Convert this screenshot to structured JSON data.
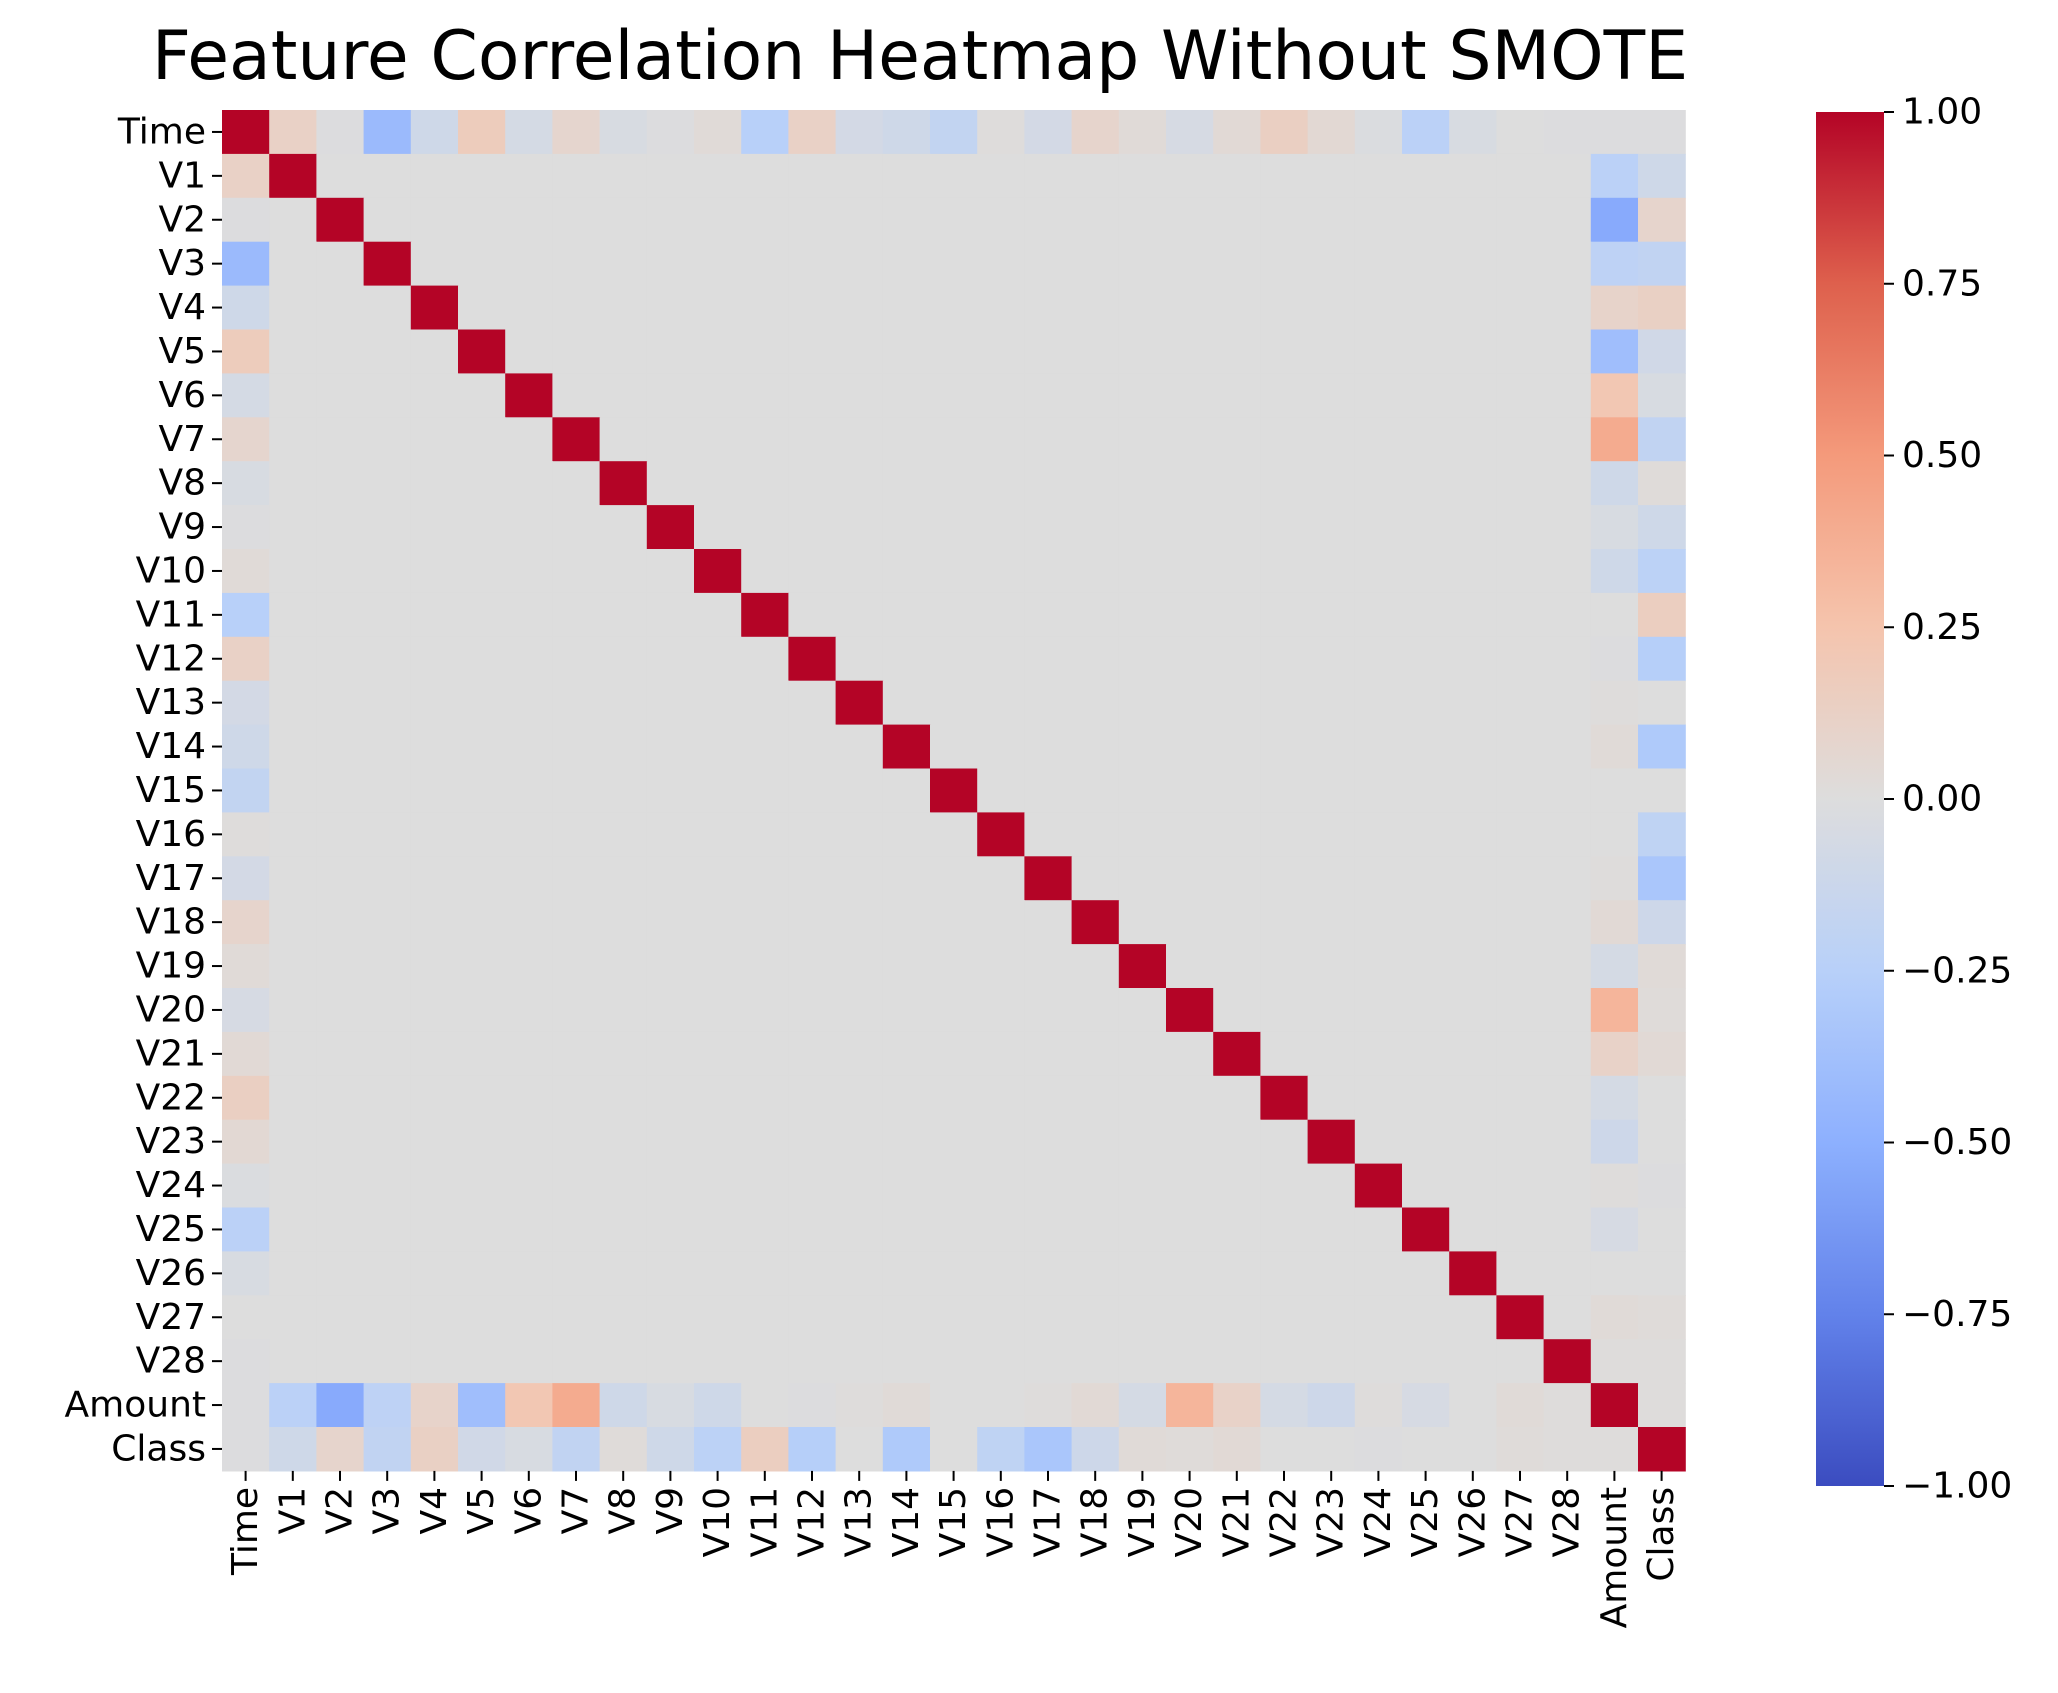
{
  "chart_data": {
    "type": "heatmap",
    "title": "Feature Correlation Heatmap Without SMOTE",
    "xlabel": "",
    "ylabel": "",
    "labels": [
      "Time",
      "V1",
      "V2",
      "V3",
      "V4",
      "V5",
      "V6",
      "V7",
      "V8",
      "V9",
      "V10",
      "V11",
      "V12",
      "V13",
      "V14",
      "V15",
      "V16",
      "V17",
      "V18",
      "V19",
      "V20",
      "V21",
      "V22",
      "V23",
      "V24",
      "V25",
      "V26",
      "V27",
      "V28",
      "Amount",
      "Class"
    ],
    "colormap": "coolwarm",
    "vmin": -1.0,
    "vmax": 1.0,
    "colorbar_ticks": [
      1.0,
      0.75,
      0.5,
      0.25,
      0.0,
      -0.25,
      -0.5,
      -0.75,
      -1.0
    ],
    "colorbar_tick_labels": [
      "1.00",
      "0.75",
      "0.50",
      "0.25",
      "0.00",
      "−0.25",
      "−0.50",
      "−0.75",
      "−1.00"
    ],
    "diagonal": 1.0,
    "time_column": [
      1.0,
      0.12,
      -0.01,
      -0.42,
      -0.1,
      0.17,
      -0.06,
      0.08,
      -0.04,
      -0.01,
      0.03,
      -0.25,
      0.12,
      -0.07,
      -0.1,
      -0.18,
      0.01,
      -0.07,
      0.09,
      0.03,
      -0.05,
      0.04,
      0.14,
      0.05,
      -0.02,
      -0.23,
      -0.04,
      0.0,
      -0.01,
      -0.01,
      -0.01
    ],
    "amount_column": [
      -0.01,
      -0.23,
      -0.53,
      -0.21,
      0.1,
      -0.39,
      0.22,
      0.4,
      -0.1,
      -0.04,
      -0.1,
      0.0,
      -0.01,
      0.01,
      0.03,
      -0.0,
      -0.0,
      0.01,
      0.04,
      -0.06,
      0.34,
      0.11,
      -0.06,
      -0.11,
      0.01,
      -0.05,
      -0.0,
      0.03,
      0.01,
      1.0,
      0.01
    ],
    "class_column": [
      -0.01,
      -0.1,
      0.09,
      -0.19,
      0.13,
      -0.09,
      -0.04,
      -0.19,
      0.02,
      -0.1,
      -0.22,
      0.15,
      -0.26,
      -0.0,
      -0.3,
      -0.0,
      -0.2,
      -0.33,
      -0.11,
      0.03,
      0.02,
      0.04,
      0.0,
      -0.0,
      -0.01,
      0.0,
      0.0,
      0.02,
      0.01,
      0.01,
      1.0
    ]
  }
}
